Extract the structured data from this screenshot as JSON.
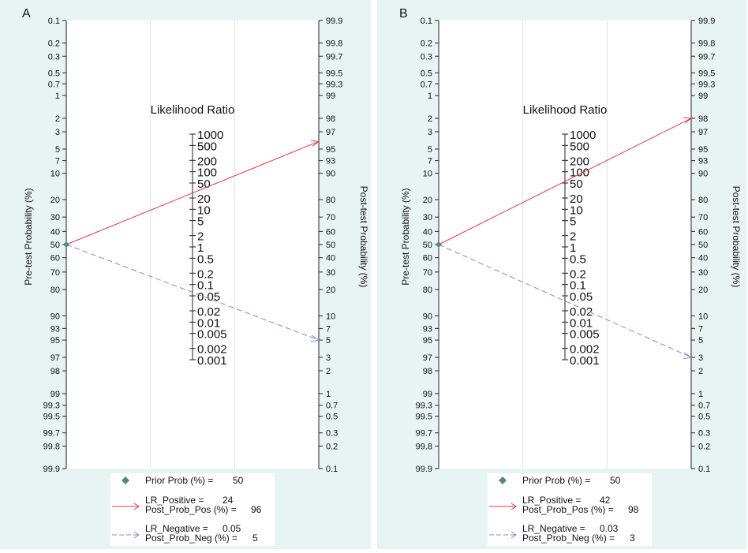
{
  "chart_data": [
    {
      "type": "fagan-nomogram",
      "panel_label": "A",
      "left_axis_label": "Pre-test Probability (%)",
      "right_axis_label": "Post-test Probability (%)",
      "center_axis_title": "Likelihood Ratio",
      "left_ticks": [
        "0.1",
        "0.2",
        "0.3",
        "0.5",
        "0.7",
        "1",
        "2",
        "3",
        "5",
        "7",
        "10",
        "20",
        "30",
        "40",
        "50",
        "60",
        "70",
        "80",
        "90",
        "93",
        "95",
        "97",
        "98",
        "99",
        "99.3",
        "99.5",
        "99.7",
        "99.8",
        "99.9"
      ],
      "right_ticks": [
        "99.9",
        "99.8",
        "99.7",
        "99.5",
        "99.3",
        "99",
        "98",
        "97",
        "95",
        "93",
        "90",
        "80",
        "70",
        "60",
        "50",
        "40",
        "30",
        "20",
        "10",
        "7",
        "5",
        "3",
        "2",
        "1",
        "0.7",
        "0.5",
        "0.3",
        "0.2",
        "0.1"
      ],
      "lr_ticks": [
        "1000",
        "500",
        "200",
        "100",
        "50",
        "20",
        "10",
        "5",
        "2",
        "1",
        "0.5",
        "0.2",
        "0.1",
        "0.05",
        "0.02",
        "0.01",
        "0.005",
        "0.002",
        "0.001"
      ],
      "prior_prob": 50,
      "lr_positive": 24,
      "post_prob_pos": 96,
      "lr_negative": 0.05,
      "post_prob_neg": 5,
      "legend": {
        "prior_label": "Prior Prob (%) =",
        "prior_value": "50",
        "lr_pos_label": "LR_Positive =",
        "lr_pos_value": "24",
        "post_pos_label": "Post_Prob_Pos (%) =",
        "post_pos_value": "96",
        "lr_neg_label": "LR_Negative =",
        "lr_neg_value": "0.05",
        "post_neg_label": "Post_Prob_Neg (%) =",
        "post_neg_value": "5"
      }
    },
    {
      "type": "fagan-nomogram",
      "panel_label": "B",
      "left_axis_label": "Pre-test Probability (%)",
      "right_axis_label": "Post-test Probability (%)",
      "center_axis_title": "Likelihood Ratio",
      "left_ticks": [
        "0.1",
        "0.2",
        "0.3",
        "0.5",
        "0.7",
        "1",
        "2",
        "3",
        "5",
        "7",
        "10",
        "20",
        "30",
        "40",
        "50",
        "60",
        "70",
        "80",
        "90",
        "93",
        "95",
        "97",
        "98",
        "99",
        "99.3",
        "99.5",
        "99.7",
        "99.8",
        "99.9"
      ],
      "right_ticks": [
        "99.9",
        "99.8",
        "99.7",
        "99.5",
        "99.3",
        "99",
        "98",
        "97",
        "95",
        "93",
        "90",
        "80",
        "70",
        "60",
        "50",
        "40",
        "30",
        "20",
        "10",
        "7",
        "5",
        "3",
        "2",
        "1",
        "0.7",
        "0.5",
        "0.3",
        "0.2",
        "0.1"
      ],
      "lr_ticks": [
        "1000",
        "500",
        "200",
        "100",
        "50",
        "20",
        "10",
        "5",
        "2",
        "1",
        "0.5",
        "0.2",
        "0.1",
        "0.05",
        "0.02",
        "0.01",
        "0.005",
        "0.002",
        "0.001"
      ],
      "prior_prob": 50,
      "lr_positive": 42,
      "post_prob_pos": 98,
      "lr_negative": 0.03,
      "post_prob_neg": 3,
      "legend": {
        "prior_label": "Prior Prob (%) =",
        "prior_value": "50",
        "lr_pos_label": "LR_Positive =",
        "lr_pos_value": "42",
        "post_pos_label": "Post_Prob_Pos (%) =",
        "post_pos_value": "98",
        "lr_neg_label": "LR_Negative =",
        "lr_neg_value": "0.03",
        "post_neg_label": "Post_Prob_Neg (%) =",
        "post_neg_value": "3"
      }
    }
  ],
  "colors": {
    "panel_bg": "#e8f4f4",
    "plot_bg": "#ffffff",
    "axis": "#222222",
    "grid": "#dde3e6",
    "positive_line": "#e23a4a",
    "negative_line": "#8a86d6",
    "prior_marker": "#4f8a80"
  }
}
